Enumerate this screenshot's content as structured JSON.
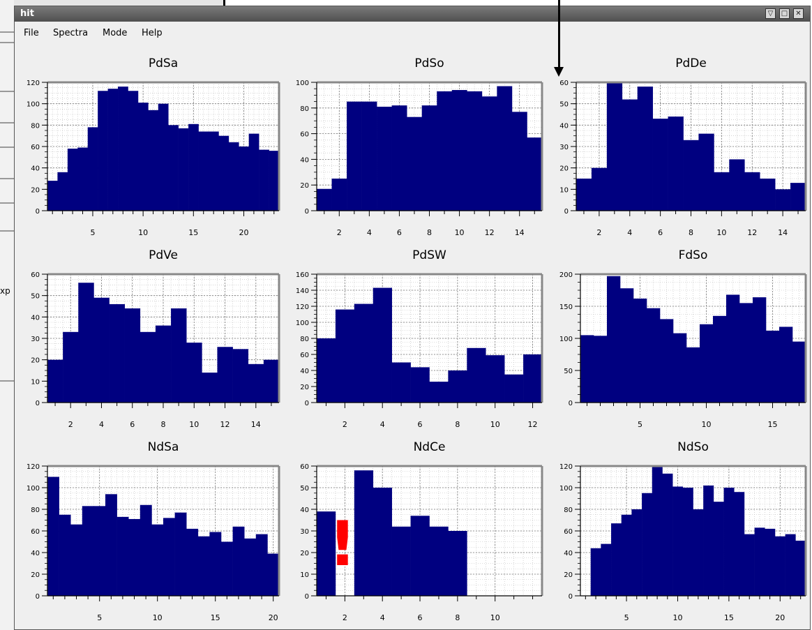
{
  "window": {
    "title": "hit"
  },
  "menus": [
    {
      "label": "File",
      "icon": "file-menu"
    },
    {
      "label": "Spectra",
      "icon": "spectra-menu"
    },
    {
      "label": "Mode",
      "icon": "mode-menu"
    },
    {
      "label": "Help",
      "icon": "help-menu"
    }
  ],
  "background_text": "xp",
  "window_controls": [
    "minimize-icon",
    "maximize-icon",
    "close-icon"
  ],
  "colors": {
    "bar": "#000080",
    "frame": "#888888",
    "grid": "#b8b8b8",
    "background": "#ffffff",
    "annotation": "#ff0000"
  },
  "annotation": {
    "text": "!"
  },
  "chart_data": [
    {
      "type": "bar",
      "title": "PdSa",
      "xlim": [
        0.5,
        23.5
      ],
      "ylim": [
        0,
        120
      ],
      "yticks": [
        0,
        20,
        40,
        60,
        80,
        100,
        120
      ],
      "xticks": [
        5,
        10,
        15,
        20
      ],
      "values": [
        28,
        36,
        58,
        59,
        78,
        112,
        114,
        116,
        112,
        101,
        94,
        100,
        80,
        77,
        81,
        74,
        74,
        70,
        64,
        60,
        72,
        57,
        56
      ]
    },
    {
      "type": "bar",
      "title": "PdSo",
      "xlim": [
        0.5,
        15.5
      ],
      "ylim": [
        0,
        100
      ],
      "yticks": [
        0,
        20,
        40,
        60,
        80,
        100
      ],
      "xticks": [
        2,
        4,
        6,
        8,
        10,
        12,
        14
      ],
      "values": [
        17,
        25,
        85,
        85,
        81,
        82,
        73,
        82,
        93,
        94,
        93,
        89,
        97,
        77,
        57
      ]
    },
    {
      "type": "bar",
      "title": "PdDe",
      "xlim": [
        0.5,
        15.5
      ],
      "ylim": [
        0,
        60
      ],
      "yticks": [
        0,
        10,
        20,
        30,
        40,
        50,
        60
      ],
      "xticks": [
        2,
        4,
        6,
        8,
        10,
        12,
        14
      ],
      "values": [
        15,
        20,
        60,
        52,
        58,
        43,
        44,
        33,
        36,
        18,
        24,
        18,
        15,
        10,
        13
      ]
    },
    {
      "type": "bar",
      "title": "PdVe",
      "xlim": [
        0.5,
        15.5
      ],
      "ylim": [
        0,
        60
      ],
      "yticks": [
        0,
        10,
        20,
        30,
        40,
        50,
        60
      ],
      "xticks": [
        2,
        4,
        6,
        8,
        10,
        12,
        14
      ],
      "values": [
        20,
        33,
        56,
        49,
        46,
        44,
        33,
        36,
        44,
        28,
        14,
        26,
        25,
        18,
        20
      ]
    },
    {
      "type": "bar",
      "title": "PdSW",
      "xlim": [
        0.5,
        12.5
      ],
      "ylim": [
        0,
        160
      ],
      "yticks": [
        0,
        20,
        40,
        60,
        80,
        100,
        120,
        140,
        160
      ],
      "xticks": [
        2,
        4,
        6,
        8,
        10,
        12
      ],
      "values": [
        80,
        116,
        123,
        143,
        50,
        44,
        26,
        40,
        68,
        59,
        35,
        60
      ]
    },
    {
      "type": "bar",
      "title": "FdSo",
      "xlim": [
        0.5,
        17.5
      ],
      "ylim": [
        0,
        200
      ],
      "yticks": [
        0,
        50,
        100,
        150,
        200
      ],
      "xticks": [
        5,
        10,
        15
      ],
      "values": [
        105,
        104,
        197,
        178,
        162,
        147,
        130,
        108,
        86,
        122,
        135,
        168,
        155,
        164,
        112,
        118,
        95
      ]
    },
    {
      "type": "bar",
      "title": "NdSa",
      "xlim": [
        0.5,
        20.5
      ],
      "ylim": [
        0,
        120
      ],
      "yticks": [
        0,
        20,
        40,
        60,
        80,
        100,
        120
      ],
      "xticks": [
        5,
        10,
        15,
        20
      ],
      "values": [
        110,
        75,
        66,
        83,
        83,
        94,
        73,
        71,
        84,
        66,
        72,
        77,
        62,
        55,
        59,
        50,
        64,
        53,
        57,
        39
      ]
    },
    {
      "type": "bar",
      "title": "NdCe",
      "xlim": [
        0.5,
        12.5
      ],
      "ylim": [
        0,
        60
      ],
      "yticks": [
        0,
        10,
        20,
        30,
        40,
        50,
        60
      ],
      "xticks": [
        2,
        4,
        6,
        8,
        10
      ],
      "values": [
        39,
        0,
        58,
        50,
        32,
        37,
        32,
        30,
        0,
        0,
        0,
        0
      ]
    },
    {
      "type": "bar",
      "title": "NdSo",
      "xlim": [
        0.5,
        22.5
      ],
      "ylim": [
        0,
        120
      ],
      "yticks": [
        0,
        20,
        40,
        60,
        80,
        100,
        120
      ],
      "xticks": [
        5,
        10,
        15,
        20
      ],
      "values": [
        0,
        44,
        48,
        67,
        75,
        80,
        95,
        119,
        113,
        101,
        100,
        80,
        102,
        87,
        100,
        96,
        57,
        63,
        62,
        55,
        57,
        51
      ]
    }
  ]
}
